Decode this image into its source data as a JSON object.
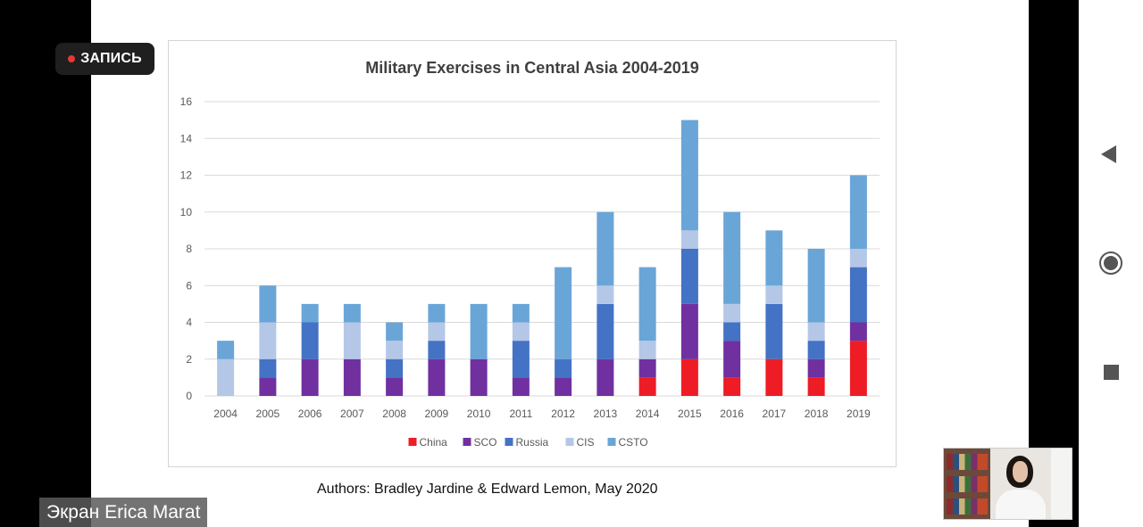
{
  "recording": {
    "label": "ЗАПИСЬ"
  },
  "screen_share": {
    "label": "Экран Erica Marat"
  },
  "slide": {
    "authors": "Authors:  Bradley Jardine & Edward Lemon, May 2020"
  },
  "colors": {
    "China": "#ee1c25",
    "SCO": "#7030a0",
    "Russia": "#4472c4",
    "CIS": "#b4c7e7",
    "CSTO": "#6aa5d8"
  },
  "chart_data": {
    "type": "bar",
    "stacked": true,
    "title": "Military Exercises in Central Asia 2004-2019",
    "categories": [
      "2004",
      "2005",
      "2006",
      "2007",
      "2008",
      "2009",
      "2010",
      "2011",
      "2012",
      "2013",
      "2014",
      "2015",
      "2016",
      "2017",
      "2018",
      "2019"
    ],
    "series": [
      {
        "name": "China",
        "values": [
          0,
          0,
          0,
          0,
          0,
          0,
          0,
          0,
          0,
          0,
          1,
          2,
          1,
          2,
          1,
          3
        ]
      },
      {
        "name": "SCO",
        "values": [
          0,
          1,
          2,
          2,
          1,
          2,
          2,
          1,
          1,
          2,
          1,
          3,
          2,
          0,
          1,
          1
        ]
      },
      {
        "name": "Russia",
        "values": [
          0,
          1,
          2,
          0,
          1,
          1,
          0,
          2,
          1,
          3,
          0,
          3,
          1,
          3,
          1,
          3
        ]
      },
      {
        "name": "CIS",
        "values": [
          2,
          2,
          0,
          2,
          1,
          1,
          0,
          1,
          0,
          1,
          1,
          1,
          1,
          1,
          1,
          1
        ]
      },
      {
        "name": "CSTO",
        "values": [
          1,
          2,
          1,
          1,
          1,
          1,
          3,
          1,
          5,
          4,
          4,
          6,
          5,
          3,
          4,
          4
        ]
      }
    ],
    "ylim": [
      0,
      16
    ],
    "yticks": [
      "0",
      "2",
      "4",
      "6",
      "8",
      "10",
      "12",
      "14",
      "16"
    ],
    "grid": true,
    "legend": "bottom"
  }
}
